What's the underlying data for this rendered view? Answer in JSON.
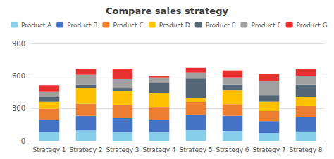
{
  "chart_data": {
    "type": "bar",
    "title": "Compare sales strategy",
    "categories": [
      "Strategy 1",
      "Strategy 2",
      "Strategy 3",
      "Strategy 4",
      "Strategy 5",
      "Strategy 6",
      "Strategy 7",
      "Strategy 8"
    ],
    "series": [
      {
        "name": "Product A",
        "color": "#87CEEB",
        "values": [
          80,
          95,
          80,
          80,
          100,
          90,
          70,
          85
        ]
      },
      {
        "name": "Product B",
        "color": "#4472C4",
        "values": [
          110,
          140,
          130,
          110,
          140,
          145,
          110,
          135
        ]
      },
      {
        "name": "Product C",
        "color": "#ED7D31",
        "values": [
          110,
          110,
          120,
          120,
          120,
          100,
          95,
          100
        ]
      },
      {
        "name": "Product D",
        "color": "#FFC000",
        "values": [
          65,
          145,
          130,
          130,
          35,
          130,
          90,
          85
        ]
      },
      {
        "name": "Product E",
        "color": "#556677",
        "values": [
          40,
          30,
          25,
          95,
          180,
          55,
          55,
          115
        ]
      },
      {
        "name": "Product F",
        "color": "#A0A0A0",
        "values": [
          50,
          90,
          85,
          50,
          55,
          65,
          130,
          80
        ]
      },
      {
        "name": "Product G",
        "color": "#E83030",
        "values": [
          55,
          55,
          90,
          15,
          45,
          65,
          70,
          65
        ]
      }
    ],
    "stacked": true,
    "ylim": [
      0,
      900
    ],
    "yticks": [
      0,
      300,
      600,
      900
    ],
    "grid": true,
    "legend": "upper left"
  }
}
